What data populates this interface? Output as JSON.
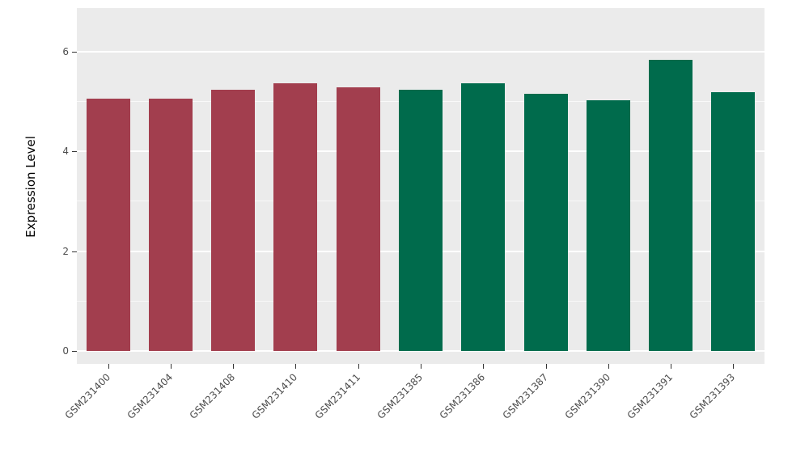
{
  "chart_data": {
    "type": "bar",
    "title": "",
    "xlabel": "",
    "ylabel": "Expression Level",
    "ylim": [
      0,
      6.87
    ],
    "yticks": [
      0,
      2,
      4,
      6
    ],
    "minor_ticks": [
      1,
      3,
      5
    ],
    "grid": "on",
    "legend": "none",
    "panel_background": "#EBEBEB",
    "gridline_color": "#ffffff",
    "colors": {
      "groupA": "#A23E4E",
      "groupB": "#006B4C"
    },
    "categories": [
      "GSM231400",
      "GSM231404",
      "GSM231408",
      "GSM231410",
      "GSM231411",
      "GSM231385",
      "GSM231386",
      "GSM231387",
      "GSM231390",
      "GSM231391",
      "GSM231393"
    ],
    "bars": [
      {
        "label": "GSM231400",
        "value": 5.06,
        "group": "groupA"
      },
      {
        "label": "GSM231404",
        "value": 5.06,
        "group": "groupA"
      },
      {
        "label": "GSM231408",
        "value": 5.24,
        "group": "groupA"
      },
      {
        "label": "GSM231410",
        "value": 5.37,
        "group": "groupA"
      },
      {
        "label": "GSM231411",
        "value": 5.28,
        "group": "groupA"
      },
      {
        "label": "GSM231385",
        "value": 5.24,
        "group": "groupB"
      },
      {
        "label": "GSM231386",
        "value": 5.37,
        "group": "groupB"
      },
      {
        "label": "GSM231387",
        "value": 5.16,
        "group": "groupB"
      },
      {
        "label": "GSM231390",
        "value": 5.03,
        "group": "groupB"
      },
      {
        "label": "GSM231391",
        "value": 5.84,
        "group": "groupB"
      },
      {
        "label": "GSM231393",
        "value": 5.19,
        "group": "groupB"
      }
    ]
  }
}
